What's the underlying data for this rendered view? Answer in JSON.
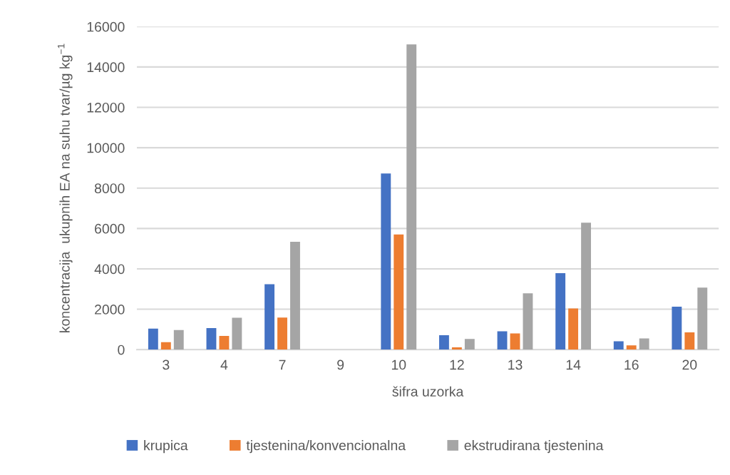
{
  "chart_data": {
    "type": "bar",
    "xlabel": "šifra uzorka",
    "ylabel": "koncentracija  ukupnih EA na suhu tvar/µg kg$^{−1}$",
    "categories": [
      "3",
      "4",
      "7",
      "9",
      "10",
      "12",
      "13",
      "14",
      "16",
      "20"
    ],
    "series": [
      {
        "name": "krupica",
        "color": "#4472c4",
        "values": [
          1040,
          1070,
          3240,
          null,
          8720,
          710,
          910,
          3790,
          410,
          2130
        ]
      },
      {
        "name": "tjestenina/konvencionalna",
        "color": "#ed7d31",
        "values": [
          370,
          680,
          1590,
          null,
          5700,
          110,
          800,
          2040,
          210,
          850
        ]
      },
      {
        "name": "ekstrudirana tjestenina",
        "color": "#a5a5a5",
        "values": [
          970,
          1580,
          5340,
          null,
          15120,
          530,
          2790,
          6290,
          550,
          3070
        ]
      }
    ],
    "ylim": [
      0,
      16000
    ],
    "yticks": [
      0,
      2000,
      4000,
      6000,
      8000,
      10000,
      12000,
      14000,
      16000
    ],
    "grid": "y",
    "legend": "bottom"
  }
}
